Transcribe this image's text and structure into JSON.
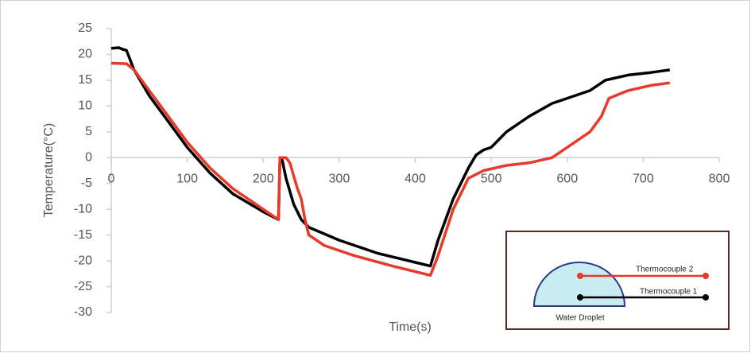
{
  "chart_data": {
    "type": "line",
    "x_label": "Time(s)",
    "y_label": "Temperature(°C)",
    "xlim": [
      0,
      800
    ],
    "ylim": [
      -30,
      25
    ],
    "xticks": [
      0,
      100,
      200,
      300,
      400,
      500,
      600,
      700,
      800
    ],
    "yticks": [
      -30,
      -25,
      -20,
      -15,
      -10,
      -5,
      0,
      5,
      10,
      15,
      20,
      25
    ],
    "inset_label": "Water Droplet",
    "series": [
      {
        "name": "Thermocouple 1",
        "color": "#000000",
        "x": [
          0,
          10,
          15,
          20,
          30,
          50,
          80,
          100,
          130,
          160,
          200,
          220,
          222,
          225,
          230,
          240,
          250,
          260,
          300,
          350,
          400,
          420,
          430,
          450,
          470,
          480,
          490,
          500,
          520,
          550,
          580,
          600,
          630,
          650,
          680,
          710,
          735
        ],
        "values": [
          21.2,
          21.3,
          21,
          20.8,
          17,
          12,
          6,
          2,
          -3,
          -7,
          -10.5,
          -12,
          0,
          -0.5,
          -4,
          -9,
          -12,
          -13.5,
          -16,
          -18.5,
          -20.3,
          -21,
          -16,
          -8,
          -2,
          0.5,
          1.5,
          2,
          5,
          8,
          10.5,
          11.5,
          13,
          15,
          16,
          16.5,
          17
        ]
      },
      {
        "name": "Thermocouple 2",
        "color": "#e8392a",
        "x": [
          0,
          20,
          30,
          50,
          80,
          100,
          130,
          160,
          200,
          220,
          222,
          230,
          235,
          245,
          250,
          255,
          260,
          280,
          320,
          370,
          420,
          430,
          450,
          470,
          490,
          520,
          550,
          580,
          600,
          630,
          645,
          655,
          680,
          710,
          735
        ],
        "values": [
          18.3,
          18.2,
          17,
          13,
          7,
          3,
          -2,
          -6,
          -10,
          -12,
          0,
          0,
          -1,
          -6,
          -8,
          -12,
          -15,
          -17,
          -19,
          -21,
          -22.8,
          -19,
          -10,
          -4,
          -2.5,
          -1.5,
          -1,
          0,
          2,
          5,
          8,
          11.5,
          13,
          14,
          14.5
        ]
      }
    ]
  }
}
